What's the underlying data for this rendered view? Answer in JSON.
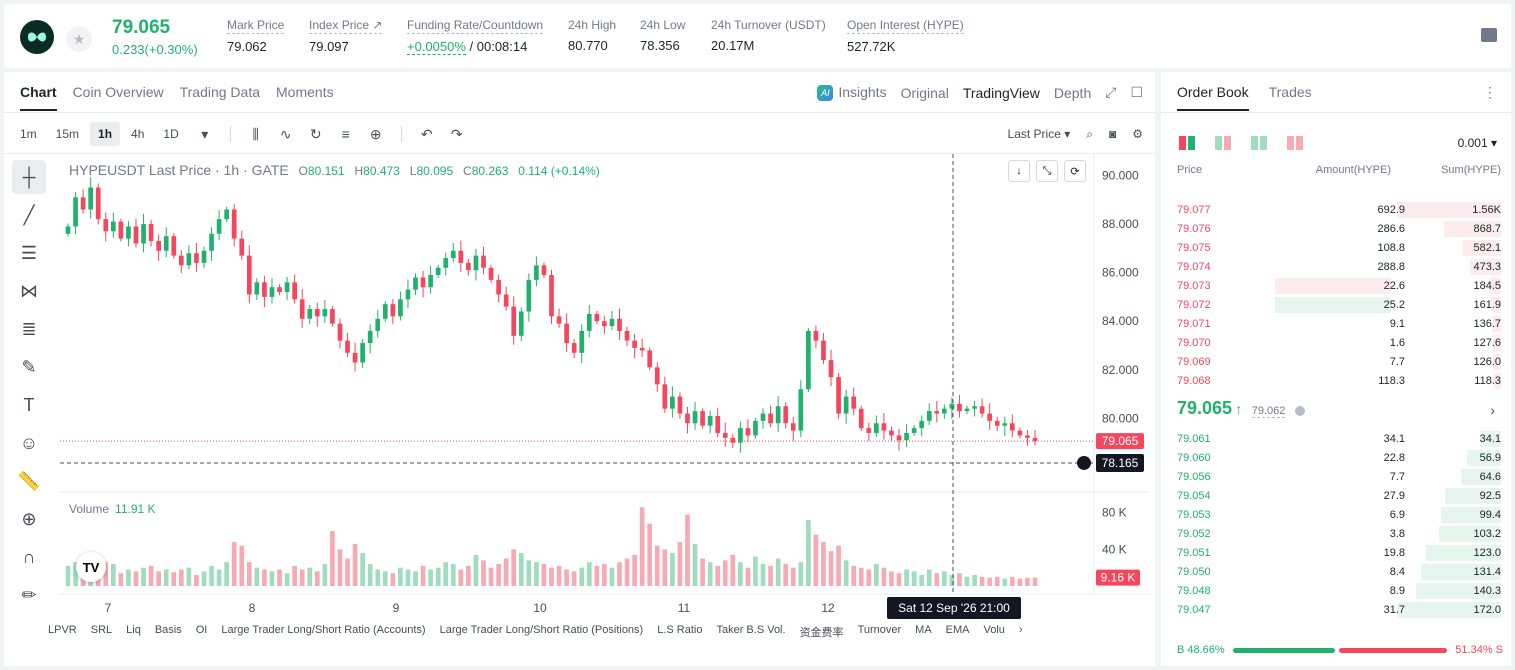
{
  "header": {
    "last_price": "79.065",
    "change": "0.233(+0.30%)",
    "stats": [
      {
        "label": "Mark Price",
        "value": "79.062"
      },
      {
        "label": "Index Price ↗",
        "value": "79.097"
      },
      {
        "label": "Funding Rate/Countdown",
        "value_green": "+0.0050%",
        "value": " / 00:08:14"
      },
      {
        "label": "24h High",
        "value": "80.770"
      },
      {
        "label": "24h Low",
        "value": "78.356"
      },
      {
        "label": "24h Turnover (USDT)",
        "value": "20.17M"
      },
      {
        "label": "Open Interest (HYPE)",
        "value": "527.72K"
      }
    ]
  },
  "chart_tabs": [
    "Chart",
    "Coin Overview",
    "Trading Data",
    "Moments"
  ],
  "view_tabs": {
    "insights": "Insights",
    "original": "Original",
    "tradingview": "TradingView",
    "depth": "Depth"
  },
  "timeframes": [
    "1m",
    "15m",
    "1h",
    "4h",
    "1D"
  ],
  "price_type": "Last Price",
  "legend": {
    "symbol": "HYPEUSDT Last Price · 1h · GATE",
    "o_key": "O",
    "o": "80.151",
    "h_key": "H",
    "h": "80.473",
    "l_key": "L",
    "l": "80.095",
    "c_key": "C",
    "c": "80.263",
    "chg": "0.114 (+0.14%)"
  },
  "volume_legend": {
    "label": "Volume",
    "value": "11.91 K"
  },
  "indicators": [
    "LPVR",
    "SRL",
    "Liq",
    "Basis",
    "OI",
    "Large Trader Long/Short Ratio (Accounts)",
    "Large Trader Long/Short Ratio (Positions)",
    "L.S Ratio",
    "Taker B.S Vol.",
    "资金费率",
    "Turnover",
    "MA",
    "EMA",
    "Volu"
  ],
  "chart_data": {
    "type": "candlestick",
    "x_tick_labels": [
      "7",
      "8",
      "9",
      "10",
      "11",
      "12"
    ],
    "y_tick_labels": [
      "90.000",
      "88.000",
      "86.000",
      "84.000",
      "82.000",
      "80.000"
    ],
    "y_range": [
      77.3,
      90.8
    ],
    "volume_tick_labels": [
      "80 K",
      "40 K"
    ],
    "volume_range": [
      0,
      95
    ],
    "last_price_label": "79.065",
    "last_price": 79.065,
    "crosshair_price_label": "78.165",
    "crosshair_price": 78.165,
    "crosshair_time_label": "Sat 12 Sep '26   21:00",
    "volume_last_label": "9.16 K",
    "closes": [
      87.9,
      89.1,
      88.6,
      89.5,
      88.2,
      87.7,
      88.1,
      87.4,
      87.9,
      87.2,
      88.0,
      87.3,
      86.9,
      87.5,
      86.7,
      86.3,
      86.8,
      86.4,
      86.9,
      87.6,
      88.2,
      88.6,
      87.4,
      86.7,
      85.1,
      85.6,
      85.0,
      85.4,
      85.2,
      85.6,
      84.9,
      84.1,
      84.5,
      84.2,
      84.5,
      83.9,
      83.2,
      82.7,
      82.3,
      83.1,
      83.6,
      84.1,
      84.7,
      84.2,
      84.9,
      85.3,
      85.8,
      85.4,
      85.9,
      86.2,
      86.6,
      86.9,
      86.4,
      86.1,
      86.7,
      86.2,
      85.7,
      85.1,
      84.6,
      83.4,
      84.4,
      85.7,
      86.3,
      85.9,
      84.2,
      83.9,
      83.1,
      82.7,
      83.6,
      84.3,
      84.0,
      83.8,
      84.1,
      83.6,
      83.2,
      82.9,
      82.8,
      82.1,
      81.4,
      80.4,
      80.9,
      80.2,
      79.8,
      80.3,
      79.7,
      80.1,
      79.4,
      79.2,
      79.0,
      79.6,
      79.3,
      79.9,
      80.2,
      79.8,
      80.5,
      79.8,
      79.5,
      81.2,
      83.6,
      83.2,
      82.4,
      81.7,
      80.2,
      80.9,
      80.4,
      79.6,
      79.4,
      79.8,
      79.5,
      79.3,
      79.1,
      79.4,
      79.6,
      79.9,
      80.3,
      80.2,
      80.4,
      80.6,
      80.3,
      80.4,
      80.5,
      80.2,
      79.9,
      79.7,
      79.8,
      79.5,
      79.3,
      79.2,
      79.065
    ],
    "volumes": [
      22,
      26,
      30,
      20,
      18,
      26,
      24,
      14,
      18,
      16,
      20,
      22,
      16,
      18,
      15,
      18,
      20,
      12,
      16,
      22,
      18,
      26,
      48,
      44,
      26,
      20,
      18,
      16,
      18,
      14,
      22,
      18,
      20,
      16,
      24,
      60,
      40,
      30,
      46,
      36,
      24,
      18,
      16,
      14,
      20,
      18,
      16,
      22,
      18,
      20,
      26,
      24,
      18,
      22,
      34,
      28,
      20,
      24,
      30,
      40,
      36,
      28,
      26,
      24,
      20,
      22,
      18,
      16,
      20,
      26,
      22,
      24,
      20,
      26,
      30,
      34,
      86,
      68,
      44,
      40,
      36,
      48,
      78,
      46,
      30,
      26,
      22,
      28,
      34,
      26,
      20,
      32,
      24,
      22,
      30,
      24,
      20,
      26,
      72,
      56,
      48,
      38,
      44,
      28,
      22,
      20,
      18,
      24,
      20,
      16,
      14,
      18,
      16,
      12,
      18,
      14,
      16,
      12,
      14,
      10,
      12,
      10,
      9,
      10,
      8,
      10,
      8,
      9,
      9.16
    ]
  },
  "orderbook": {
    "tabs": [
      "Order Book",
      "Trades"
    ],
    "precision": "0.001",
    "headers": {
      "price": "Price",
      "amount": "Amount(HYPE)",
      "sum": "Sum(HYPE)"
    },
    "asks": [
      {
        "price": "79.077",
        "amount": "692.9",
        "sum": "1.56K",
        "sum_fraction": 1.0,
        "amt_fraction": 0
      },
      {
        "price": "79.076",
        "amount": "286.6",
        "sum": "868.7",
        "sum_fraction": 0.55,
        "amt_fraction": 0
      },
      {
        "price": "79.075",
        "amount": "108.8",
        "sum": "582.1",
        "sum_fraction": 0.37,
        "amt_fraction": 0
      },
      {
        "price": "79.074",
        "amount": "288.8",
        "sum": "473.3",
        "sum_fraction": 0.3,
        "amt_fraction": 0
      },
      {
        "price": "79.073",
        "amount": "22.6",
        "sum": "184.5",
        "sum_fraction": 0.12,
        "amt_fraction": 0.58
      },
      {
        "price": "79.072",
        "amount": "25.2",
        "sum": "161.9",
        "sum_fraction": 0.1,
        "amt_fraction": 0.58
      },
      {
        "price": "79.071",
        "amount": "9.1",
        "sum": "136.7",
        "sum_fraction": 0.09,
        "amt_fraction": 0
      },
      {
        "price": "79.070",
        "amount": "1.6",
        "sum": "127.6",
        "sum_fraction": 0.08,
        "amt_fraction": 0
      },
      {
        "price": "79.069",
        "amount": "7.7",
        "sum": "126.0",
        "sum_fraction": 0.08,
        "amt_fraction": 0
      },
      {
        "price": "79.068",
        "amount": "118.3",
        "sum": "118.3",
        "sum_fraction": 0.07,
        "amt_fraction": 0
      }
    ],
    "mid_price": "79.065",
    "mark_price": "79.062",
    "bids": [
      {
        "price": "79.061",
        "amount": "34.1",
        "sum": "34.1",
        "sum_fraction": 0.2
      },
      {
        "price": "79.060",
        "amount": "22.8",
        "sum": "56.9",
        "sum_fraction": 0.33
      },
      {
        "price": "79.056",
        "amount": "7.7",
        "sum": "64.6",
        "sum_fraction": 0.38
      },
      {
        "price": "79.054",
        "amount": "27.9",
        "sum": "92.5",
        "sum_fraction": 0.54
      },
      {
        "price": "79.053",
        "amount": "6.9",
        "sum": "99.4",
        "sum_fraction": 0.58
      },
      {
        "price": "79.052",
        "amount": "3.8",
        "sum": "103.2",
        "sum_fraction": 0.6
      },
      {
        "price": "79.051",
        "amount": "19.8",
        "sum": "123.0",
        "sum_fraction": 0.72
      },
      {
        "price": "79.050",
        "amount": "8.4",
        "sum": "131.4",
        "sum_fraction": 0.77
      },
      {
        "price": "79.048",
        "amount": "8.9",
        "sum": "140.3",
        "sum_fraction": 0.82
      },
      {
        "price": "79.047",
        "amount": "31.7",
        "sum": "172.0",
        "sum_fraction": 1.0
      }
    ],
    "buy_ratio": "B 48.66%",
    "sell_ratio": "51.34% S",
    "buy_fraction": 0.4866
  },
  "colors": {
    "up": "#20b26c",
    "down": "#f6465d",
    "up_vol": "#9fdcc0",
    "down_vol": "#f8aab4"
  }
}
